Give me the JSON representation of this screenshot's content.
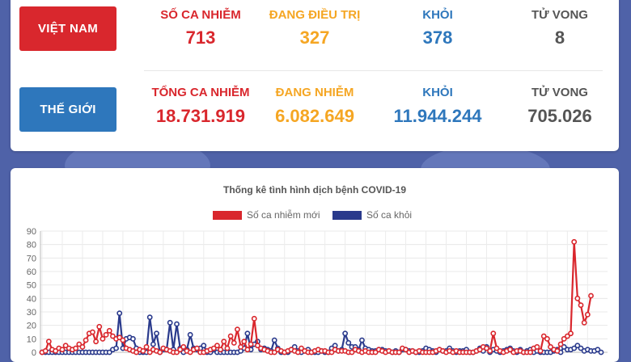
{
  "vietnam": {
    "region_label": "VIỆT NAM",
    "stats": [
      {
        "label": "SỐ CA NHIỄM",
        "value": "713",
        "color": "#d9272d"
      },
      {
        "label": "ĐANG ĐIỀU TRỊ",
        "value": "327",
        "color": "#f5a623"
      },
      {
        "label": "KHỎI",
        "value": "378",
        "color": "#2e77bc"
      },
      {
        "label": "TỬ VONG",
        "value": "8",
        "color": "#555555"
      }
    ]
  },
  "world": {
    "region_label": "THẾ GIỚI",
    "stats": [
      {
        "label": "TỔNG CA NHIỄM",
        "value": "18.731.919",
        "color": "#d9272d"
      },
      {
        "label": "ĐANG NHIỄM",
        "value": "6.082.649",
        "color": "#f5a623"
      },
      {
        "label": "KHỎI",
        "value": "11.944.244",
        "color": "#2e77bc"
      },
      {
        "label": "TỬ VONG",
        "value": "705.026",
        "color": "#555555"
      }
    ]
  },
  "chart_data": {
    "type": "line",
    "title": "Thống kê tình hình dịch bệnh COVID-19",
    "ylim": [
      0,
      90
    ],
    "yticks": [
      0,
      10,
      20,
      30,
      40,
      50,
      60,
      70,
      80,
      90
    ],
    "grid": true,
    "legend_position": "top",
    "series": [
      {
        "name": "Số ca nhiễm mới",
        "color": "#d9272d",
        "values": [
          0,
          1,
          8,
          2,
          1,
          3,
          2,
          5,
          3,
          2,
          3,
          6,
          4,
          9,
          14,
          15,
          8,
          19,
          10,
          13,
          16,
          12,
          10,
          11,
          9,
          3,
          2,
          1,
          0,
          2,
          1,
          4,
          0,
          2,
          1,
          0,
          3,
          2,
          1,
          0,
          0,
          2,
          4,
          1,
          0,
          2,
          3,
          0,
          0,
          1,
          2,
          3,
          5,
          2,
          8,
          3,
          12,
          7,
          17,
          4,
          8,
          2,
          6,
          25,
          5,
          3,
          2,
          1,
          0,
          0,
          2,
          1,
          0,
          1,
          2,
          1,
          0,
          3,
          1,
          0,
          0,
          1,
          2,
          1,
          1,
          0,
          0,
          2,
          1,
          1,
          1,
          0,
          0,
          2,
          1,
          0,
          1,
          0,
          0,
          0,
          2,
          1,
          0,
          1,
          0,
          0,
          0,
          3,
          2,
          0,
          1,
          0,
          1,
          0,
          0,
          0,
          0,
          1,
          2,
          1,
          0,
          1,
          0,
          1,
          0,
          0,
          0,
          0,
          0,
          1,
          2,
          4,
          3,
          1,
          14,
          3,
          1,
          0,
          1,
          2,
          0,
          1,
          1,
          0,
          0,
          0,
          3,
          4,
          1,
          12,
          10,
          4,
          2,
          1,
          6,
          10,
          12,
          14,
          82,
          40,
          35,
          22,
          28,
          42
        ]
      },
      {
        "name": "Số ca khỏi",
        "color": "#2a3a8c",
        "values": [
          0,
          0,
          0,
          0,
          0,
          0,
          0,
          0,
          0,
          0,
          0,
          0,
          0,
          0,
          0,
          0,
          0,
          0,
          0,
          0,
          0,
          2,
          3,
          29,
          3,
          10,
          11,
          10,
          3,
          0,
          0,
          0,
          26,
          6,
          14,
          0,
          2,
          2,
          22,
          2,
          21,
          3,
          0,
          2,
          13,
          3,
          2,
          3,
          5,
          0,
          0,
          2,
          0,
          0,
          0,
          0,
          0,
          0,
          0,
          1,
          3,
          14,
          2,
          6,
          8,
          2,
          3,
          2,
          1,
          9,
          3,
          0,
          0,
          0,
          2,
          4,
          1,
          0,
          1,
          2,
          0,
          0,
          0,
          1,
          0,
          0,
          3,
          5,
          1,
          2,
          14,
          7,
          4,
          4,
          2,
          9,
          3,
          2,
          1,
          1,
          2,
          2,
          1,
          1,
          0,
          1,
          0,
          2,
          2,
          1,
          1,
          0,
          0,
          1,
          3,
          2,
          1,
          0,
          2,
          1,
          1,
          3,
          1,
          0,
          1,
          1,
          2,
          0,
          0,
          1,
          3,
          1,
          4,
          0,
          2,
          1,
          0,
          1,
          2,
          3,
          1,
          0,
          2,
          0,
          1,
          2,
          0,
          1,
          0,
          0,
          0,
          0,
          1,
          2,
          0,
          4,
          2,
          2,
          3,
          5,
          3,
          1,
          2,
          1,
          1,
          2,
          0
        ]
      }
    ]
  }
}
